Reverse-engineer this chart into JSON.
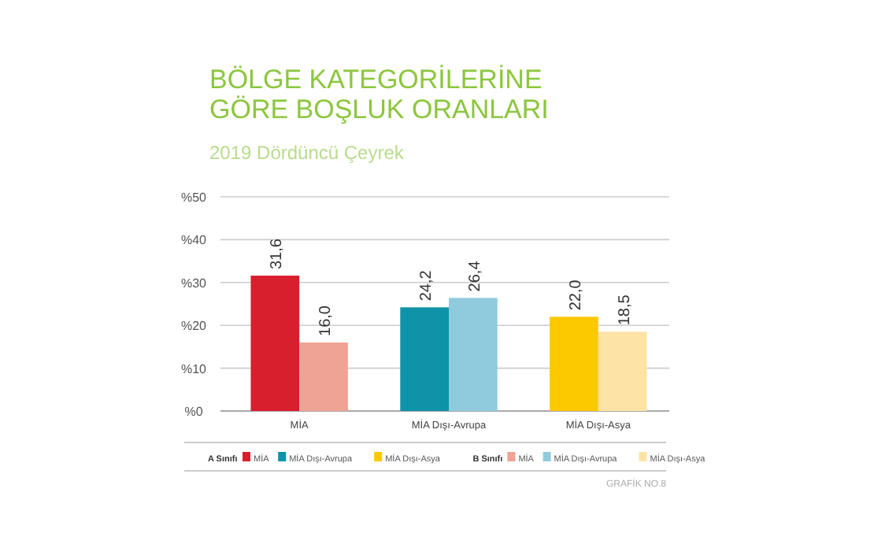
{
  "chart_data": {
    "type": "bar",
    "title": "BÖLGE KATEGORİLERİNE GÖRE BOŞLUK ORANLARI",
    "subtitle": "2019 Dördüncü Çeyrek",
    "categories": [
      "MİA",
      "MİA Dışı-Avrupa",
      "MİA Dışı-Asya"
    ],
    "series": [
      {
        "name": "A Sınıfı",
        "colors": [
          "#d81f2e",
          "#0e93a8",
          "#fcc800"
        ],
        "values": [
          31.6,
          24.2,
          22.0
        ],
        "value_labels": [
          "31,6",
          "24,2",
          "22,0"
        ]
      },
      {
        "name": "B Sınıfı",
        "colors": [
          "#eea394",
          "#8fcbdc",
          "#fde3a6"
        ],
        "values": [
          16.0,
          26.4,
          18.5
        ],
        "value_labels": [
          "16,0",
          "26,4",
          "18,5"
        ]
      }
    ],
    "ylim": [
      0,
      50
    ],
    "yticks": [
      {
        "value": 0,
        "label": "%0"
      },
      {
        "value": 10,
        "label": "%10"
      },
      {
        "value": 20,
        "label": "%20"
      },
      {
        "value": 30,
        "label": "%30"
      },
      {
        "value": 40,
        "label": "%40"
      },
      {
        "value": 50,
        "label": "%50"
      }
    ],
    "grid": "y",
    "legend": "bottom",
    "annotations": [
      "GRAFİK NO.8"
    ]
  }
}
